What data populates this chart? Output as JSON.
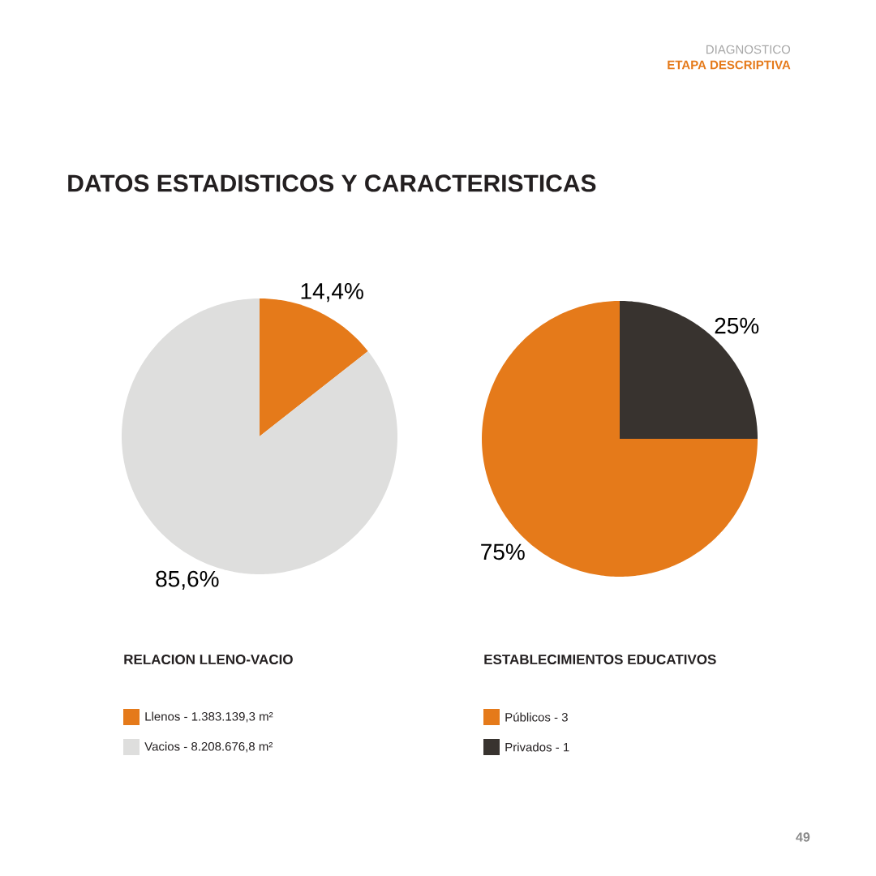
{
  "chart_data": [
    {
      "type": "other",
      "title": "DATOS ESTADISTICOS Y CARACTERISTICAS",
      "annotations": [
        "DIAGNOSTICO",
        "ETAPA DESCRIPTIVA",
        "49"
      ]
    },
    {
      "type": "pie",
      "title": "RELACION LLENO-VACIO",
      "categories": [
        "Llenos - 1.383.139,3 m²",
        "Vacios - 8.208.676,8 m²"
      ],
      "values": [
        14.4,
        85.6
      ],
      "value_labels": [
        "14,4%",
        "85,6%"
      ],
      "colors": [
        "#e57a1a",
        "#dededd"
      ],
      "legend": "bottom"
    },
    {
      "type": "pie",
      "title": "ESTABLECIMIENTOS EDUCATIVOS",
      "categories": [
        "Públicos - 3",
        "Privados - 1"
      ],
      "values": [
        75,
        25
      ],
      "value_labels": [
        "75%",
        "25%"
      ],
      "colors": [
        "#e57a1a",
        "#38332f"
      ],
      "legend": "bottom"
    }
  ]
}
